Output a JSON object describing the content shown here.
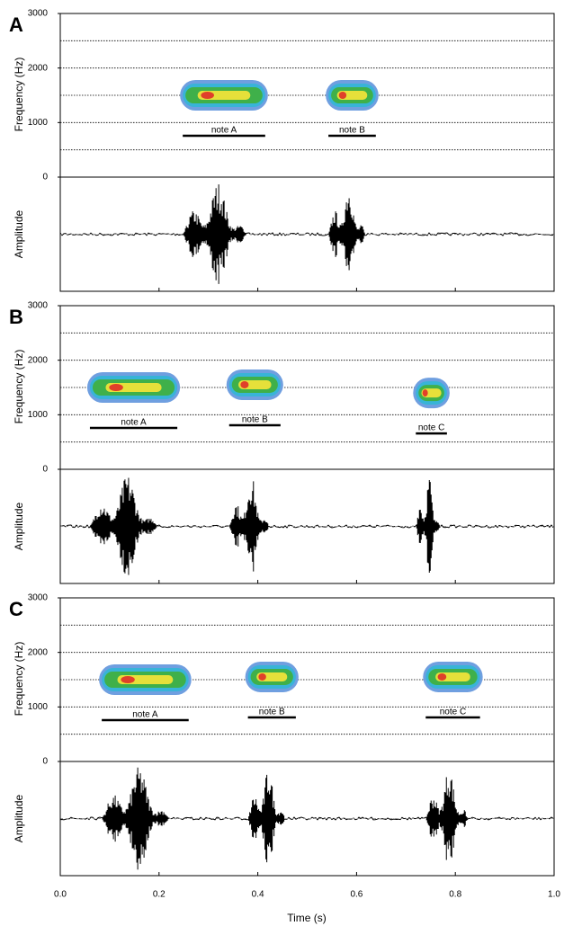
{
  "chart_data": [
    {
      "type": "spectrogram",
      "panel": "A",
      "ylim": [
        0,
        3000
      ],
      "yticks": [
        0,
        1000,
        2000,
        3000
      ],
      "grid_ticks": [
        500,
        1000,
        1500,
        2000,
        2500
      ],
      "notes": [
        {
          "label": "note A",
          "start": 0.248,
          "end": 0.415,
          "freq": 1500
        },
        {
          "label": "note B",
          "start": 0.543,
          "end": 0.639,
          "freq": 1500
        }
      ]
    },
    {
      "type": "spectrogram",
      "panel": "B",
      "ylim": [
        0,
        3000
      ],
      "yticks": [
        0,
        1000,
        2000,
        3000
      ],
      "grid_ticks": [
        500,
        1000,
        1500,
        2000,
        2500
      ],
      "notes": [
        {
          "label": "note A",
          "start": 0.06,
          "end": 0.237,
          "freq": 1500
        },
        {
          "label": "note B",
          "start": 0.342,
          "end": 0.446,
          "freq": 1550
        },
        {
          "label": "note C",
          "start": 0.72,
          "end": 0.783,
          "freq": 1400
        }
      ]
    },
    {
      "type": "spectrogram",
      "panel": "C",
      "ylim": [
        0,
        3000
      ],
      "yticks": [
        0,
        1000,
        2000,
        3000
      ],
      "grid_ticks": [
        500,
        1000,
        1500,
        2000,
        2500
      ],
      "notes": [
        {
          "label": "note A",
          "start": 0.084,
          "end": 0.26,
          "freq": 1500
        },
        {
          "label": "note B",
          "start": 0.38,
          "end": 0.477,
          "freq": 1550
        },
        {
          "label": "note C",
          "start": 0.74,
          "end": 0.85,
          "freq": 1550
        }
      ]
    }
  ],
  "freq_label": "Frequency (Hz)",
  "amp_label": "Amplitude",
  "x_label": "Time (s)",
  "xlim": [
    0,
    1
  ],
  "xticks": [
    {
      "value": 0,
      "label": "0.0"
    },
    0.2,
    0.4,
    0.6,
    0.8,
    {
      "value": 1,
      "label": "1.0"
    }
  ]
}
